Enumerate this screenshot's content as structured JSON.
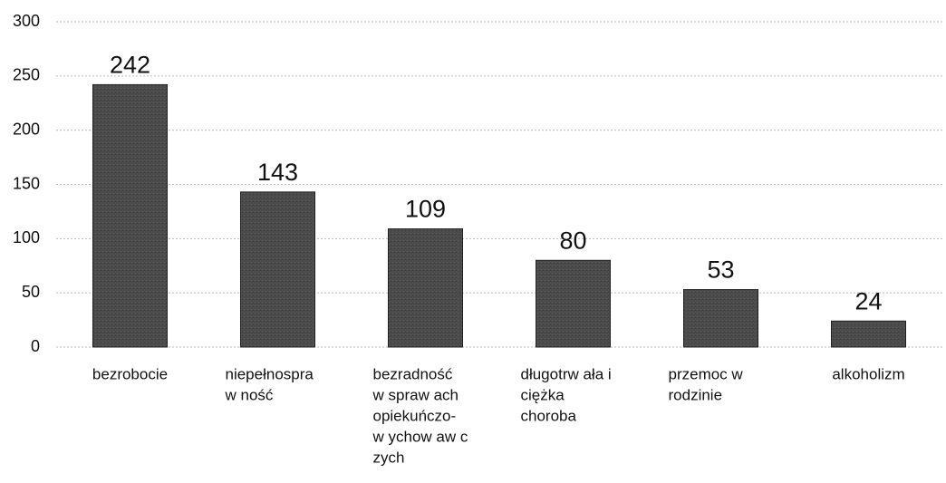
{
  "chart_data": {
    "type": "bar",
    "categories": [
      [
        "bezrobocie"
      ],
      [
        "niepełnospra",
        "w ność"
      ],
      [
        "bezradność",
        "w spraw ach",
        "opiekuńczo-",
        "w ychow aw c",
        "zych"
      ],
      [
        "długotrw ała i",
        "ciężka",
        "choroba"
      ],
      [
        "przemoc w",
        "rodzinie"
      ],
      [
        "alkoholizm"
      ]
    ],
    "values": [
      242,
      143,
      109,
      80,
      53,
      24
    ],
    "color": "#4b4b4b",
    "ylim": [
      0,
      300
    ],
    "yticks": [
      0,
      50,
      100,
      150,
      200,
      250,
      300
    ],
    "grid": true
  }
}
